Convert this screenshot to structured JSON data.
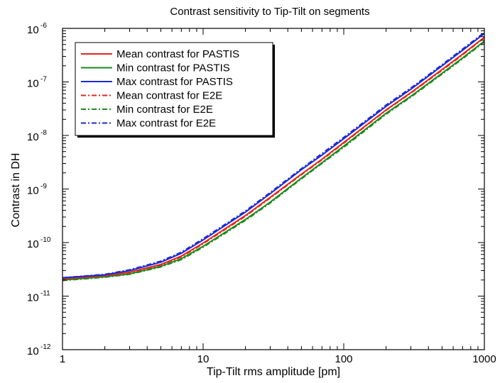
{
  "chart_data": {
    "type": "line",
    "title": "Contrast sensitivity to Tip-Tilt on segments",
    "xlabel": "Tip-Tilt rms amplitude [pm]",
    "ylabel": "Contrast in DH",
    "x_scale": "log",
    "y_scale": "log",
    "xlim": [
      1,
      1000
    ],
    "ylim": [
      1e-12,
      1e-06
    ],
    "grid": false,
    "legend_position": "top-left",
    "x_ticks": [
      {
        "value": 1,
        "label": "1"
      },
      {
        "value": 10,
        "label": "10"
      },
      {
        "value": 100,
        "label": "100"
      },
      {
        "value": 1000,
        "label": "1000"
      }
    ],
    "y_ticks": [
      {
        "value": 1e-12,
        "base": "10",
        "exp": "-12"
      },
      {
        "value": 1e-11,
        "base": "10",
        "exp": "-11"
      },
      {
        "value": 1e-10,
        "base": "10",
        "exp": "-10"
      },
      {
        "value": 1e-09,
        "base": "10",
        "exp": "-9"
      },
      {
        "value": 1e-08,
        "base": "10",
        "exp": "-8"
      },
      {
        "value": 1e-07,
        "base": "10",
        "exp": "-7"
      },
      {
        "value": 1e-06,
        "base": "10",
        "exp": "-6"
      }
    ],
    "x": [
      1,
      2,
      3,
      5,
      7,
      10,
      20,
      30,
      50,
      70,
      100,
      200,
      300,
      500,
      700,
      1000
    ],
    "series": [
      {
        "name": "Mean contrast for PASTIS",
        "color": "#e8231d",
        "style": "solid",
        "values": [
          2.1e-11,
          2.4e-11,
          2.8e-11,
          3.9e-11,
          5.6e-11,
          9.8e-11,
          3.2e-10,
          7e-10,
          1.9e-09,
          3.6e-09,
          7.4e-09,
          3e-08,
          6.3e-08,
          1.7e-07,
          3.3e-07,
          6.8e-07
        ]
      },
      {
        "name": "Min contrast for PASTIS",
        "color": "#1a8a1a",
        "style": "solid",
        "values": [
          2e-11,
          2.3e-11,
          2.6e-11,
          3.6e-11,
          5e-11,
          8.5e-11,
          2.7e-10,
          5.7e-10,
          1.6e-09,
          3.1e-09,
          6.3e-09,
          2.6e-08,
          5.4e-08,
          1.45e-07,
          2.8e-07,
          5.8e-07
        ]
      },
      {
        "name": "Max contrast for PASTIS",
        "color": "#1a2ad6",
        "style": "solid",
        "values": [
          2.2e-11,
          2.5e-11,
          3e-11,
          4.3e-11,
          6.3e-11,
          1.12e-10,
          3.7e-10,
          8.2e-10,
          2.3e-09,
          4.3e-09,
          8.7e-09,
          3.5e-08,
          7.3e-08,
          2e-07,
          3.9e-07,
          8e-07
        ]
      },
      {
        "name": "Mean contrast for E2E",
        "color": "#e8231d",
        "style": "dashdot",
        "values": [
          2.05e-11,
          2.35e-11,
          2.75e-11,
          3.8e-11,
          5.4e-11,
          9.5e-11,
          3.1e-10,
          6.8e-10,
          1.85e-09,
          3.5e-09,
          7.2e-09,
          2.95e-08,
          6.2e-08,
          1.65e-07,
          3.2e-07,
          6.7e-07
        ]
      },
      {
        "name": "Min contrast for E2E",
        "color": "#1a8a1a",
        "style": "dashdot",
        "values": [
          1.95e-11,
          2.25e-11,
          2.55e-11,
          3.5e-11,
          4.8e-11,
          8.2e-11,
          2.6e-10,
          5.5e-10,
          1.55e-09,
          3e-09,
          6e-09,
          2.5e-08,
          5.2e-08,
          1.4e-07,
          2.7e-07,
          5.6e-07
        ]
      },
      {
        "name": "Max contrast for E2E",
        "color": "#1a2ad6",
        "style": "dashdot",
        "values": [
          2.2e-11,
          2.55e-11,
          3.1e-11,
          4.5e-11,
          6.6e-11,
          1.18e-10,
          3.9e-10,
          8.6e-10,
          2.4e-09,
          4.6e-09,
          9.2e-09,
          3.7e-08,
          7.7e-08,
          2.1e-07,
          4.1e-07,
          8.4e-07
        ]
      }
    ]
  }
}
